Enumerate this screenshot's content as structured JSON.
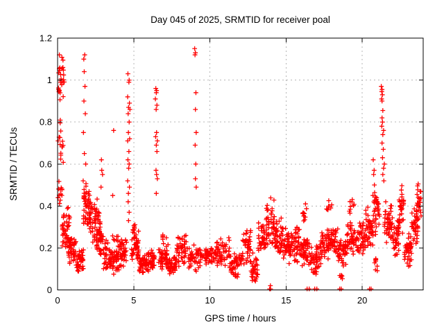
{
  "chart_data": {
    "type": "scatter",
    "title": "Day 045 of 2025, SRMTID for receiver poal",
    "xlabel": "GPS time / hours",
    "ylabel": "SRMTID / TECUs",
    "series_name": "SRMTID",
    "xlim": [
      0,
      24
    ],
    "ylim": [
      0,
      1.2
    ],
    "xticks": [
      0,
      5,
      10,
      15,
      20
    ],
    "xtick_labels": [
      "0",
      "5",
      "10",
      "15",
      "20"
    ],
    "yticks": [
      0,
      0.2,
      0.4,
      0.6,
      0.8,
      1,
      1.2
    ],
    "ytick_labels": [
      "0",
      "0.2",
      "0.4",
      "0.6",
      "0.8",
      "1",
      "1.2"
    ],
    "grid": true,
    "legend": "none",
    "marker": "plus",
    "marker_color": "#ff0000",
    "grid_color": "#b4b4b4",
    "axis_color": "#000000",
    "background": "#ffffff",
    "seed": 2025045,
    "clusters": [
      [
        0.05,
        0.45,
        0.86,
        1.13,
        26
      ],
      [
        0.08,
        0.42,
        0.55,
        0.86,
        14
      ],
      [
        0.0,
        0.3,
        0.38,
        0.55,
        12
      ],
      [
        0.3,
        0.8,
        0.18,
        0.4,
        50
      ],
      [
        0.7,
        1.2,
        0.12,
        0.3,
        45
      ],
      [
        1.2,
        1.7,
        0.07,
        0.22,
        40
      ],
      [
        1.7,
        2.1,
        0.28,
        0.52,
        48
      ],
      [
        2.1,
        2.5,
        0.22,
        0.42,
        40
      ],
      [
        2.5,
        3.0,
        0.15,
        0.35,
        45
      ],
      [
        2.55,
        2.75,
        0.3,
        0.45,
        10
      ],
      [
        3.0,
        3.6,
        0.08,
        0.25,
        45
      ],
      [
        3.6,
        4.1,
        0.05,
        0.28,
        45
      ],
      [
        4.1,
        4.55,
        0.09,
        0.26,
        35
      ],
      [
        4.85,
        5.35,
        0.1,
        0.3,
        45
      ],
      [
        4.9,
        5.1,
        0.25,
        0.33,
        10
      ],
      [
        5.35,
        5.9,
        0.07,
        0.18,
        45
      ],
      [
        5.9,
        6.38,
        0.08,
        0.2,
        40
      ],
      [
        6.62,
        7.25,
        0.09,
        0.22,
        45
      ],
      [
        6.9,
        7.15,
        0.2,
        0.3,
        8
      ],
      [
        7.25,
        7.8,
        0.05,
        0.17,
        40
      ],
      [
        7.8,
        8.5,
        0.1,
        0.28,
        45
      ],
      [
        8.5,
        9.5,
        0.08,
        0.22,
        50
      ],
      [
        9.5,
        10.4,
        0.12,
        0.21,
        50
      ],
      [
        10.4,
        11.3,
        0.1,
        0.26,
        50
      ],
      [
        11.3,
        12.1,
        0.06,
        0.22,
        45
      ],
      [
        11.55,
        11.85,
        0.04,
        0.09,
        6
      ],
      [
        12.1,
        12.7,
        0.1,
        0.3,
        40
      ],
      [
        12.7,
        13.15,
        0.03,
        0.18,
        35
      ],
      [
        13.15,
        13.7,
        0.15,
        0.35,
        40
      ],
      [
        13.7,
        14.25,
        0.2,
        0.45,
        45
      ],
      [
        14.25,
        14.8,
        0.15,
        0.35,
        45
      ],
      [
        14.8,
        15.4,
        0.12,
        0.3,
        45
      ],
      [
        15.4,
        16.0,
        0.12,
        0.32,
        45
      ],
      [
        16.0,
        16.6,
        0.1,
        0.28,
        45
      ],
      [
        16.05,
        16.35,
        0.3,
        0.44,
        10
      ],
      [
        16.6,
        17.2,
        0.06,
        0.25,
        40
      ],
      [
        17.2,
        17.8,
        0.12,
        0.3,
        45
      ],
      [
        17.65,
        18.0,
        0.36,
        0.43,
        8
      ],
      [
        17.8,
        18.4,
        0.15,
        0.32,
        45
      ],
      [
        18.4,
        19.0,
        0.1,
        0.28,
        45
      ],
      [
        18.5,
        18.7,
        0.04,
        0.1,
        6
      ],
      [
        19.0,
        19.6,
        0.15,
        0.33,
        45
      ],
      [
        19.15,
        19.5,
        0.36,
        0.45,
        10
      ],
      [
        19.6,
        20.2,
        0.15,
        0.35,
        45
      ],
      [
        20.2,
        20.7,
        0.18,
        0.4,
        40
      ],
      [
        20.7,
        21.15,
        0.25,
        0.5,
        35
      ],
      [
        20.8,
        21.0,
        0.05,
        0.18,
        8
      ],
      [
        21.45,
        22.0,
        0.22,
        0.45,
        45
      ],
      [
        22.0,
        22.4,
        0.15,
        0.35,
        40
      ],
      [
        22.35,
        22.75,
        0.25,
        0.52,
        35
      ],
      [
        22.75,
        23.25,
        0.1,
        0.3,
        45
      ],
      [
        23.25,
        23.65,
        0.2,
        0.42,
        35
      ],
      [
        23.55,
        23.88,
        0.3,
        0.52,
        30
      ]
    ],
    "points": [
      [
        0.03,
        0.71
      ],
      [
        0.12,
        1.12
      ],
      [
        0.35,
        1.06
      ],
      [
        1.72,
        1.1
      ],
      [
        1.78,
        1.12
      ],
      [
        1.75,
        1.04
      ],
      [
        1.8,
        0.97
      ],
      [
        1.73,
        0.9
      ],
      [
        1.82,
        0.84
      ],
      [
        1.7,
        0.75
      ],
      [
        1.76,
        0.65
      ],
      [
        1.85,
        0.6
      ],
      [
        1.68,
        0.52
      ],
      [
        2.88,
        0.62
      ],
      [
        2.9,
        0.57
      ],
      [
        2.95,
        0.55
      ],
      [
        2.85,
        0.49
      ],
      [
        3.68,
        0.76
      ],
      [
        3.62,
        0.45
      ],
      [
        4.62,
        1.03
      ],
      [
        4.7,
        1.0
      ],
      [
        4.68,
        0.99
      ],
      [
        4.6,
        0.92
      ],
      [
        4.72,
        0.89
      ],
      [
        4.66,
        0.87
      ],
      [
        4.75,
        0.86
      ],
      [
        4.63,
        0.84
      ],
      [
        4.7,
        0.8
      ],
      [
        4.65,
        0.75
      ],
      [
        4.73,
        0.72
      ],
      [
        4.6,
        0.71
      ],
      [
        4.68,
        0.66
      ],
      [
        4.62,
        0.62
      ],
      [
        4.7,
        0.6
      ],
      [
        4.67,
        0.58
      ],
      [
        4.6,
        0.52
      ],
      [
        4.72,
        0.49
      ],
      [
        4.65,
        0.46
      ],
      [
        4.63,
        0.42
      ],
      [
        4.7,
        0.37
      ],
      [
        4.66,
        0.33
      ],
      [
        6.45,
        0.96
      ],
      [
        6.5,
        0.95
      ],
      [
        6.48,
        0.94
      ],
      [
        6.42,
        0.91
      ],
      [
        6.52,
        0.88
      ],
      [
        6.47,
        0.86
      ],
      [
        6.5,
        0.75
      ],
      [
        6.44,
        0.73
      ],
      [
        6.55,
        0.71
      ],
      [
        6.48,
        0.69
      ],
      [
        6.52,
        0.66
      ],
      [
        6.46,
        0.57
      ],
      [
        6.5,
        0.55
      ],
      [
        6.55,
        0.53
      ],
      [
        6.48,
        0.46
      ],
      [
        9.0,
        1.15
      ],
      [
        9.05,
        1.13
      ],
      [
        9.02,
        1.12
      ],
      [
        9.08,
        0.94
      ],
      [
        9.05,
        0.86
      ],
      [
        9.1,
        0.75
      ],
      [
        9.03,
        0.69
      ],
      [
        9.07,
        0.6
      ],
      [
        9.05,
        0.53
      ],
      [
        9.1,
        0.49
      ],
      [
        20.72,
        0.62
      ],
      [
        20.78,
        0.57
      ],
      [
        20.75,
        0.55
      ],
      [
        20.8,
        0.5
      ],
      [
        20.7,
        0.45
      ],
      [
        20.76,
        0.42
      ],
      [
        20.82,
        0.38
      ],
      [
        21.25,
        0.97
      ],
      [
        21.3,
        0.955
      ],
      [
        21.28,
        0.945
      ],
      [
        21.32,
        0.93
      ],
      [
        21.27,
        0.91
      ],
      [
        21.3,
        0.9
      ],
      [
        21.35,
        0.855
      ],
      [
        21.3,
        0.82
      ],
      [
        21.33,
        0.8
      ],
      [
        21.28,
        0.78
      ],
      [
        21.4,
        0.76
      ],
      [
        21.35,
        0.74
      ],
      [
        21.3,
        0.7
      ],
      [
        21.38,
        0.67
      ],
      [
        21.33,
        0.63
      ],
      [
        21.45,
        0.6
      ],
      [
        21.4,
        0.58
      ],
      [
        21.35,
        0.55
      ],
      [
        21.42,
        0.52
      ],
      [
        13.92,
        0.005
      ],
      [
        13.97,
        0.02
      ],
      [
        13.98,
        0.005
      ],
      [
        16.38,
        0.005
      ],
      [
        16.52,
        0.005
      ],
      [
        16.88,
        0.005
      ],
      [
        17.02,
        0.005
      ],
      [
        18.52,
        0.005
      ],
      [
        18.62,
        0.005
      ],
      [
        20.48,
        0.005
      ],
      [
        20.58,
        0.005
      ]
    ]
  }
}
